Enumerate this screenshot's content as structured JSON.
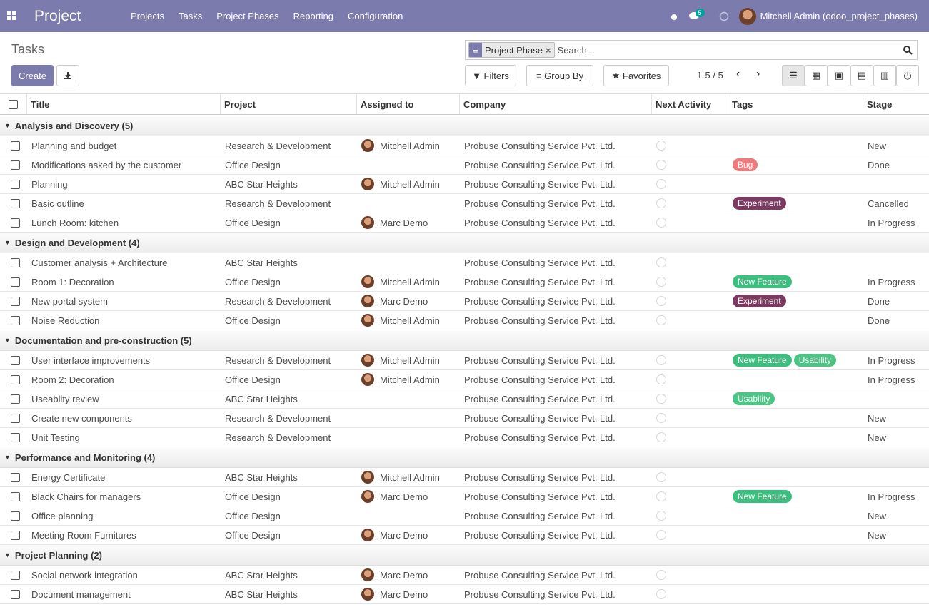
{
  "navbar": {
    "app": "Project",
    "menu": [
      "Projects",
      "Tasks",
      "Project Phases",
      "Reporting",
      "Configuration"
    ],
    "messages_count": 5,
    "user": "Mitchell Admin (odoo_project_phases)"
  },
  "control": {
    "title": "Tasks",
    "create": "Create",
    "facet": "Project Phase",
    "search_placeholder": "Search...",
    "filters": "Filters",
    "group_by": "Group By",
    "favorites": "Favorites",
    "pager": "1-5 / 5"
  },
  "table": {
    "columns": [
      "Title",
      "Project",
      "Assigned to",
      "Company",
      "Next Activity",
      "Tags",
      "Stage"
    ],
    "groups": [
      {
        "name": "Analysis and Discovery (5)",
        "rows": [
          {
            "title": "Planning and budget",
            "project": "Research & Development",
            "assignee": "Mitchell Admin",
            "company": "Probuse Consulting Service Pvt. Ltd.",
            "stage": "New"
          },
          {
            "title": "Modifications asked by the customer",
            "project": "Office Design",
            "company": "Probuse Consulting Service Pvt. Ltd.",
            "tags": [
              {
                "name": "Bug",
                "color": "#ee7b7b"
              }
            ],
            "stage": "Done"
          },
          {
            "title": "Planning",
            "project": "ABC Star Heights",
            "assignee": "Mitchell Admin",
            "company": "Probuse Consulting Service Pvt. Ltd."
          },
          {
            "title": "Basic outline",
            "project": "Research & Development",
            "company": "Probuse Consulting Service Pvt. Ltd.",
            "tags": [
              {
                "name": "Experiment",
                "color": "#7c3a61"
              }
            ],
            "stage": "Cancelled"
          },
          {
            "title": "Lunch Room: kitchen",
            "project": "Office Design",
            "assignee": "Marc Demo",
            "company": "Probuse Consulting Service Pvt. Ltd.",
            "stage": "In Progress"
          }
        ]
      },
      {
        "name": "Design and Development (4)",
        "rows": [
          {
            "title": "Customer analysis + Architecture",
            "project": "ABC Star Heights",
            "company": "Probuse Consulting Service Pvt. Ltd."
          },
          {
            "title": "Room 1: Decoration",
            "project": "Office Design",
            "assignee": "Mitchell Admin",
            "company": "Probuse Consulting Service Pvt. Ltd.",
            "tags": [
              {
                "name": "New Feature",
                "color": "#3cbf7e"
              }
            ],
            "stage": "In Progress"
          },
          {
            "title": "New portal system",
            "project": "Research & Development",
            "assignee": "Marc Demo",
            "company": "Probuse Consulting Service Pvt. Ltd.",
            "tags": [
              {
                "name": "Experiment",
                "color": "#7c3a61"
              }
            ],
            "stage": "Done"
          },
          {
            "title": "Noise Reduction",
            "project": "Office Design",
            "assignee": "Mitchell Admin",
            "company": "Probuse Consulting Service Pvt. Ltd.",
            "stage": "Done"
          }
        ]
      },
      {
        "name": "Documentation and pre-construction (5)",
        "rows": [
          {
            "title": "User interface improvements",
            "project": "Research & Development",
            "assignee": "Mitchell Admin",
            "company": "Probuse Consulting Service Pvt. Ltd.",
            "tags": [
              {
                "name": "New Feature",
                "color": "#3cbf7e"
              },
              {
                "name": "Usability",
                "color": "#4cc483"
              }
            ],
            "stage": "In Progress"
          },
          {
            "title": "Room 2: Decoration",
            "project": "Office Design",
            "assignee": "Mitchell Admin",
            "company": "Probuse Consulting Service Pvt. Ltd.",
            "stage": "In Progress"
          },
          {
            "title": "Useablity review",
            "project": "ABC Star Heights",
            "company": "Probuse Consulting Service Pvt. Ltd.",
            "tags": [
              {
                "name": "Usability",
                "color": "#4cc483"
              }
            ]
          },
          {
            "title": "Create new components",
            "project": "Research & Development",
            "company": "Probuse Consulting Service Pvt. Ltd.",
            "stage": "New"
          },
          {
            "title": "Unit Testing",
            "project": "Research & Development",
            "company": "Probuse Consulting Service Pvt. Ltd.",
            "stage": "New"
          }
        ]
      },
      {
        "name": "Performance and Monitoring (4)",
        "rows": [
          {
            "title": "Energy Certificate",
            "project": "ABC Star Heights",
            "assignee": "Mitchell Admin",
            "company": "Probuse Consulting Service Pvt. Ltd."
          },
          {
            "title": "Black Chairs for managers",
            "project": "Office Design",
            "assignee": "Marc Demo",
            "company": "Probuse Consulting Service Pvt. Ltd.",
            "tags": [
              {
                "name": "New Feature",
                "color": "#3cbf7e"
              }
            ],
            "stage": "In Progress"
          },
          {
            "title": "Office planning",
            "project": "Office Design",
            "company": "Probuse Consulting Service Pvt. Ltd.",
            "stage": "New"
          },
          {
            "title": "Meeting Room Furnitures",
            "project": "Office Design",
            "assignee": "Marc Demo",
            "company": "Probuse Consulting Service Pvt. Ltd.",
            "stage": "New"
          }
        ]
      },
      {
        "name": "Project Planning (2)",
        "rows": [
          {
            "title": "Social network integration",
            "project": "ABC Star Heights",
            "assignee": "Marc Demo",
            "company": "Probuse Consulting Service Pvt. Ltd."
          },
          {
            "title": "Document management",
            "project": "ABC Star Heights",
            "assignee": "Marc Demo",
            "company": "Probuse Consulting Service Pvt. Ltd."
          }
        ]
      }
    ]
  }
}
